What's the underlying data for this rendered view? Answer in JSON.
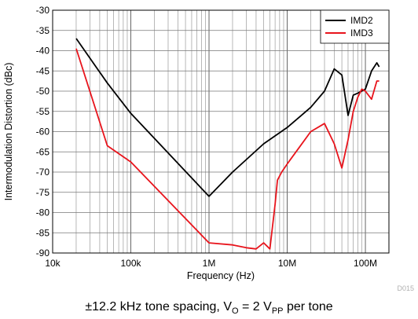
{
  "chart_data": {
    "type": "line",
    "xlabel": "Frequency (Hz)",
    "ylabel": "Intermodulation Distortion (dBc)",
    "x_scale": "log",
    "xlim": [
      10000,
      200000000
    ],
    "ylim": [
      -90,
      -30
    ],
    "x_ticks": [
      {
        "value": 10000,
        "label": "10k"
      },
      {
        "value": 100000,
        "label": "100k"
      },
      {
        "value": 1000000,
        "label": "1M"
      },
      {
        "value": 10000000,
        "label": "10M"
      },
      {
        "value": 100000000,
        "label": "100M"
      }
    ],
    "y_ticks": [
      -30,
      -35,
      -40,
      -45,
      -50,
      -55,
      -60,
      -65,
      -70,
      -75,
      -80,
      -85,
      -90
    ],
    "grid": true,
    "legend_position": "top-right",
    "series": [
      {
        "name": "IMD2",
        "color": "#000000",
        "x": [
          20000,
          50000,
          100000,
          1000000,
          2000000,
          5000000,
          10000000,
          20000000,
          30000000,
          40000000,
          50000000,
          60000000,
          70000000,
          80000000,
          100000000,
          120000000,
          140000000,
          150000000
        ],
        "y": [
          -37,
          -48,
          -55.5,
          -76,
          -70,
          -63,
          -59,
          -54,
          -50,
          -44.5,
          -46,
          -56,
          -51,
          -50.5,
          -49.5,
          -45,
          -43,
          -44
        ]
      },
      {
        "name": "IMD3",
        "color": "#e8141c",
        "x": [
          20000,
          50000,
          100000,
          1000000,
          2000000,
          3000000,
          4000000,
          5000000,
          6000000,
          7000000,
          7500000,
          8500000,
          10000000,
          20000000,
          30000000,
          40000000,
          50000000,
          60000000,
          70000000,
          80000000,
          90000000,
          100000000,
          120000000,
          140000000,
          150000000
        ],
        "y": [
          -39.5,
          -63.5,
          -67.5,
          -87.5,
          -88,
          -88.7,
          -89,
          -87.5,
          -89,
          -78,
          -72,
          -70,
          -68,
          -60,
          -58,
          -63,
          -69,
          -62,
          -55,
          -51.5,
          -49.5,
          -50,
          -52,
          -47.5,
          -47.5
        ]
      }
    ],
    "annotation": "D015",
    "caption": {
      "prefix": "±12.2 kHz tone spacing, V",
      "sub1": "O",
      "middle": " = 2 V",
      "sub2": "PP",
      "suffix": " per tone"
    }
  }
}
